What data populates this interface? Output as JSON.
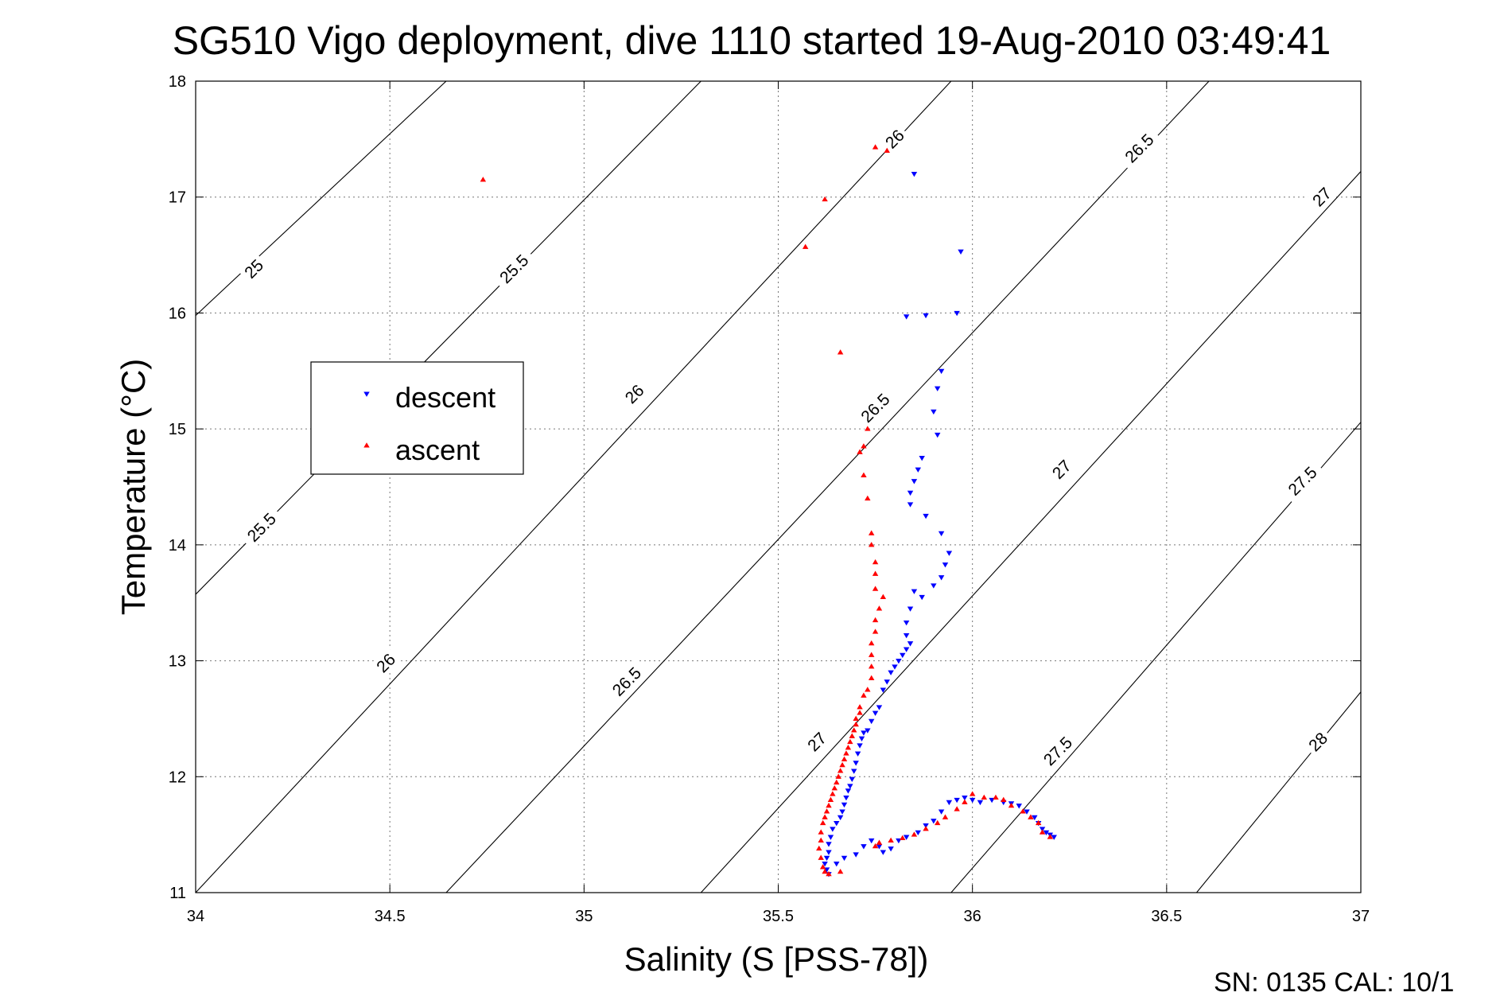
{
  "chart_data": {
    "type": "scatter",
    "title": "SG510 Vigo deployment, dive 1110 started 19-Aug-2010 03:49:41",
    "xlabel": "Salinity (S [PSS-78])",
    "ylabel": "Temperature (°C)",
    "xlim": [
      34,
      37
    ],
    "ylim": [
      11,
      18
    ],
    "xticks": [
      "34",
      "34.5",
      "35",
      "35.5",
      "36",
      "36.5",
      "37"
    ],
    "yticks": [
      "11",
      "12",
      "13",
      "14",
      "15",
      "16",
      "17",
      "18"
    ],
    "grid": true,
    "legend_position": "left",
    "footer": "SN: 0135  CAL: 10/1",
    "contour_lines": [
      {
        "density": "25",
        "x0": 34.0,
        "y0": 15.978,
        "x1": 34.645,
        "y1": 18.0
      },
      {
        "density": "25.5",
        "x0": 34.0,
        "y0": 13.573,
        "x1": 35.301,
        "y1": 18.0
      },
      {
        "density": "26",
        "x0": 34.0,
        "y0": 11.0,
        "x1": 35.945,
        "y1": 18.0
      },
      {
        "density": "26.5",
        "x0": 34.645,
        "y0": 11.0,
        "x1": 36.609,
        "y1": 18.0
      },
      {
        "density": "27",
        "x0": 35.301,
        "y0": 11.0,
        "x1": 37.0,
        "y1": 17.221
      },
      {
        "density": "27.5",
        "x0": 35.945,
        "y0": 11.0,
        "x1": 37.0,
        "y1": 15.058
      },
      {
        "density": "28",
        "x0": 36.577,
        "y0": 11.0,
        "x1": 37.0,
        "y1": 12.731
      }
    ],
    "contour_labels": [
      {
        "text": "25",
        "x": 34.15,
        "y": 16.38
      },
      {
        "text": "25.5",
        "x": 34.82,
        "y": 16.38
      },
      {
        "text": "26",
        "x": 35.8,
        "y": 17.5
      },
      {
        "text": "26.5",
        "x": 36.43,
        "y": 17.42
      },
      {
        "text": "27",
        "x": 36.9,
        "y": 17.0
      },
      {
        "text": "25.5",
        "x": 34.17,
        "y": 14.15
      },
      {
        "text": "26",
        "x": 35.13,
        "y": 15.3
      },
      {
        "text": "26.5",
        "x": 35.75,
        "y": 15.18
      },
      {
        "text": "27",
        "x": 36.23,
        "y": 14.65
      },
      {
        "text": "27.5",
        "x": 36.85,
        "y": 14.55
      },
      {
        "text": "26",
        "x": 34.49,
        "y": 12.98
      },
      {
        "text": "26.5",
        "x": 35.11,
        "y": 12.82
      },
      {
        "text": "27",
        "x": 35.6,
        "y": 12.3
      },
      {
        "text": "27.5",
        "x": 36.22,
        "y": 12.22
      },
      {
        "text": "28",
        "x": 36.89,
        "y": 12.3
      }
    ],
    "series": [
      {
        "name": "descent",
        "color": "#0000ff",
        "marker": "triangle-down",
        "points": [
          [
            35.85,
            17.2
          ],
          [
            35.97,
            16.53
          ],
          [
            35.83,
            15.97
          ],
          [
            35.88,
            15.98
          ],
          [
            35.96,
            16.0
          ],
          [
            35.92,
            15.5
          ],
          [
            35.91,
            15.35
          ],
          [
            35.9,
            15.15
          ],
          [
            35.91,
            14.95
          ],
          [
            35.87,
            14.75
          ],
          [
            35.86,
            14.65
          ],
          [
            35.85,
            14.55
          ],
          [
            35.84,
            14.45
          ],
          [
            35.84,
            14.35
          ],
          [
            35.88,
            14.25
          ],
          [
            35.92,
            14.1
          ],
          [
            35.94,
            13.93
          ],
          [
            35.93,
            13.83
          ],
          [
            35.92,
            13.72
          ],
          [
            35.9,
            13.65
          ],
          [
            35.87,
            13.55
          ],
          [
            35.85,
            13.6
          ],
          [
            35.84,
            13.45
          ],
          [
            35.83,
            13.33
          ],
          [
            35.83,
            13.22
          ],
          [
            35.84,
            13.15
          ],
          [
            35.83,
            13.1
          ],
          [
            35.82,
            13.05
          ],
          [
            35.81,
            13.0
          ],
          [
            35.8,
            12.95
          ],
          [
            35.79,
            12.9
          ],
          [
            35.78,
            12.82
          ],
          [
            35.77,
            12.75
          ],
          [
            35.76,
            12.6
          ],
          [
            35.75,
            12.55
          ],
          [
            35.74,
            12.48
          ],
          [
            35.73,
            12.4
          ],
          [
            35.72,
            12.38
          ],
          [
            35.715,
            12.33
          ],
          [
            35.71,
            12.27
          ],
          [
            35.705,
            12.2
          ],
          [
            35.7,
            12.12
          ],
          [
            35.695,
            12.05
          ],
          [
            35.69,
            11.98
          ],
          [
            35.685,
            11.92
          ],
          [
            35.68,
            11.88
          ],
          [
            35.675,
            11.82
          ],
          [
            35.67,
            11.76
          ],
          [
            35.665,
            11.7
          ],
          [
            35.66,
            11.65
          ],
          [
            35.65,
            11.6
          ],
          [
            35.64,
            11.55
          ],
          [
            35.635,
            11.48
          ],
          [
            35.63,
            11.42
          ],
          [
            35.63,
            11.35
          ],
          [
            35.625,
            11.3
          ],
          [
            35.62,
            11.25
          ],
          [
            35.625,
            11.2
          ],
          [
            35.63,
            11.16
          ],
          [
            35.65,
            11.25
          ],
          [
            35.67,
            11.3
          ],
          [
            35.7,
            11.33
          ],
          [
            35.72,
            11.4
          ],
          [
            35.74,
            11.45
          ],
          [
            35.76,
            11.4
          ],
          [
            35.77,
            11.35
          ],
          [
            35.79,
            11.38
          ],
          [
            35.81,
            11.45
          ],
          [
            35.83,
            11.48
          ],
          [
            35.86,
            11.52
          ],
          [
            35.88,
            11.58
          ],
          [
            35.9,
            11.62
          ],
          [
            35.92,
            11.7
          ],
          [
            35.94,
            11.78
          ],
          [
            35.96,
            11.8
          ],
          [
            35.98,
            11.82
          ],
          [
            36.0,
            11.8
          ],
          [
            36.02,
            11.78
          ],
          [
            36.05,
            11.8
          ],
          [
            36.08,
            11.78
          ],
          [
            36.1,
            11.77
          ],
          [
            36.12,
            11.75
          ],
          [
            36.14,
            11.7
          ],
          [
            36.16,
            11.65
          ],
          [
            36.17,
            11.6
          ],
          [
            36.18,
            11.55
          ],
          [
            36.19,
            11.52
          ],
          [
            36.2,
            11.5
          ],
          [
            36.21,
            11.48
          ]
        ]
      },
      {
        "name": "ascent",
        "color": "#ff0000",
        "marker": "triangle-up",
        "points": [
          [
            34.74,
            17.15
          ],
          [
            35.75,
            17.43
          ],
          [
            35.78,
            17.4
          ],
          [
            35.62,
            16.98
          ],
          [
            35.57,
            16.57
          ],
          [
            35.66,
            15.66
          ],
          [
            35.73,
            15.0
          ],
          [
            35.72,
            14.85
          ],
          [
            35.71,
            14.8
          ],
          [
            35.72,
            14.6
          ],
          [
            35.73,
            14.4
          ],
          [
            35.74,
            14.1
          ],
          [
            35.74,
            14.0
          ],
          [
            35.75,
            13.85
          ],
          [
            35.75,
            13.75
          ],
          [
            35.75,
            13.62
          ],
          [
            35.77,
            13.55
          ],
          [
            35.76,
            13.45
          ],
          [
            35.75,
            13.35
          ],
          [
            35.75,
            13.25
          ],
          [
            35.74,
            13.15
          ],
          [
            35.74,
            13.05
          ],
          [
            35.74,
            12.95
          ],
          [
            35.74,
            12.85
          ],
          [
            35.73,
            12.75
          ],
          [
            35.72,
            12.7
          ],
          [
            35.71,
            12.6
          ],
          [
            35.71,
            12.55
          ],
          [
            35.7,
            12.5
          ],
          [
            35.7,
            12.45
          ],
          [
            35.695,
            12.4
          ],
          [
            35.69,
            12.35
          ],
          [
            35.685,
            12.3
          ],
          [
            35.68,
            12.25
          ],
          [
            35.675,
            12.2
          ],
          [
            35.67,
            12.15
          ],
          [
            35.665,
            12.1
          ],
          [
            35.66,
            12.05
          ],
          [
            35.655,
            12.0
          ],
          [
            35.65,
            11.95
          ],
          [
            35.645,
            11.9
          ],
          [
            35.64,
            11.85
          ],
          [
            35.635,
            11.8
          ],
          [
            35.63,
            11.75
          ],
          [
            35.625,
            11.7
          ],
          [
            35.62,
            11.65
          ],
          [
            35.615,
            11.6
          ],
          [
            35.61,
            11.52
          ],
          [
            35.61,
            11.45
          ],
          [
            35.605,
            11.38
          ],
          [
            35.61,
            11.3
          ],
          [
            35.615,
            11.22
          ],
          [
            35.62,
            11.18
          ],
          [
            35.63,
            11.16
          ],
          [
            35.66,
            11.18
          ],
          [
            35.75,
            11.4
          ],
          [
            35.76,
            11.43
          ],
          [
            35.79,
            11.45
          ],
          [
            35.82,
            11.47
          ],
          [
            35.85,
            11.5
          ],
          [
            35.88,
            11.55
          ],
          [
            35.91,
            11.6
          ],
          [
            35.93,
            11.65
          ],
          [
            35.96,
            11.72
          ],
          [
            35.98,
            11.78
          ],
          [
            36.0,
            11.85
          ],
          [
            36.03,
            11.82
          ],
          [
            36.06,
            11.82
          ],
          [
            36.08,
            11.8
          ],
          [
            36.1,
            11.75
          ],
          [
            36.13,
            11.7
          ],
          [
            36.15,
            11.65
          ],
          [
            36.17,
            11.6
          ],
          [
            36.18,
            11.52
          ],
          [
            36.2,
            11.48
          ]
        ]
      }
    ]
  }
}
